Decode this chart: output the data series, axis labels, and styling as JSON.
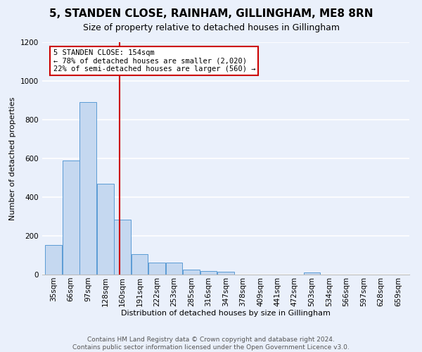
{
  "title": "5, STANDEN CLOSE, RAINHAM, GILLINGHAM, ME8 8RN",
  "subtitle": "Size of property relative to detached houses in Gillingham",
  "xlabel": "Distribution of detached houses by size in Gillingham",
  "ylabel": "Number of detached properties",
  "footer": "Contains HM Land Registry data © Crown copyright and database right 2024.\nContains public sector information licensed under the Open Government Licence v3.0.",
  "bin_labels": [
    "35sqm",
    "66sqm",
    "97sqm",
    "128sqm",
    "160sqm",
    "191sqm",
    "222sqm",
    "253sqm",
    "285sqm",
    "316sqm",
    "347sqm",
    "378sqm",
    "409sqm",
    "441sqm",
    "472sqm",
    "503sqm",
    "534sqm",
    "566sqm",
    "597sqm",
    "628sqm",
    "659sqm"
  ],
  "bar_values": [
    152,
    590,
    890,
    470,
    285,
    105,
    63,
    63,
    25,
    18,
    13,
    0,
    0,
    0,
    0,
    10,
    0,
    0,
    0,
    0,
    0
  ],
  "bar_color": "#c5d8f0",
  "bar_edge_color": "#5b9bd5",
  "annotation_text_line1": "5 STANDEN CLOSE: 154sqm",
  "annotation_text_line2": "← 78% of detached houses are smaller (2,020)",
  "annotation_text_line3": "22% of semi-detached houses are larger (560) →",
  "annotation_box_color": "#ffffff",
  "annotation_box_edge": "#cc0000",
  "red_line_color": "#cc0000",
  "ylim": [
    0,
    1200
  ],
  "yticks": [
    0,
    200,
    400,
    600,
    800,
    1000,
    1200
  ],
  "background_color": "#eaf0fb",
  "grid_color": "#ffffff",
  "title_fontsize": 11,
  "subtitle_fontsize": 9,
  "ylabel_fontsize": 8,
  "xlabel_fontsize": 8,
  "tick_fontsize": 7.5,
  "footer_fontsize": 6.5
}
